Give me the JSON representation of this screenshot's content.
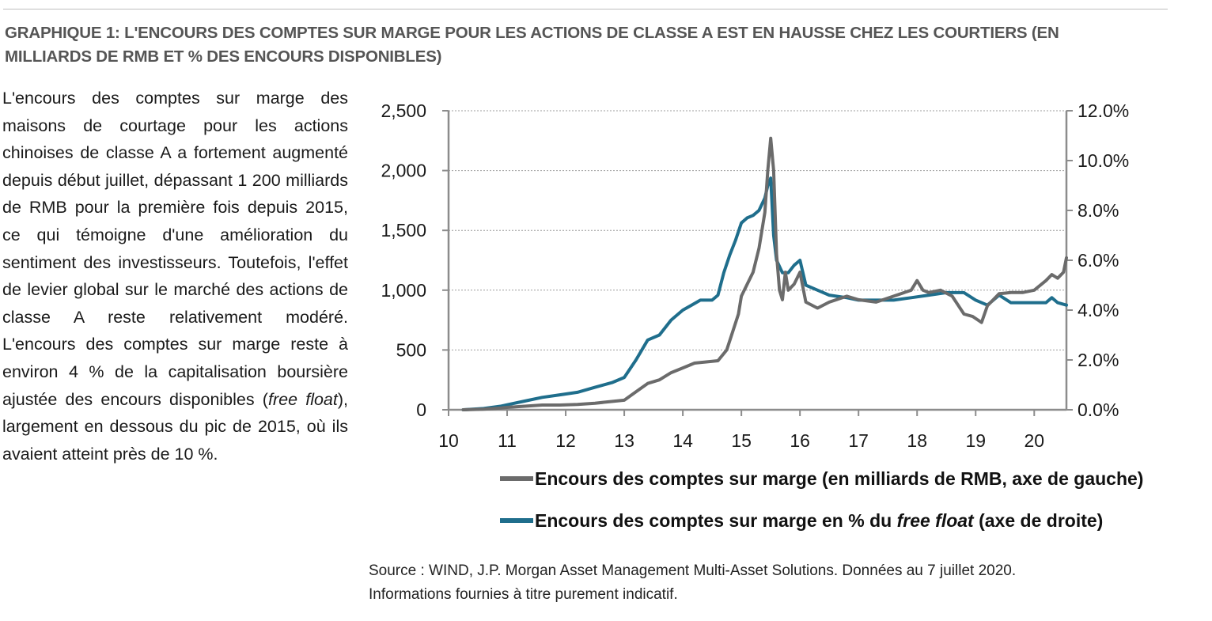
{
  "header": {
    "title": "GRAPHIQUE 1: L'ENCOURS DES COMPTES SUR MARGE POUR LES ACTIONS DE CLASSE A EST EN HAUSSE CHEZ LES COURTIERS (EN MILLIARDS DE RMB ET % DES ENCOURS DISPONIBLES)"
  },
  "body": {
    "text_before": "L'encours des comptes sur marge des maisons de courtage pour les actions chinoises de classe A a fortement augmenté depuis début juillet, dépassant 1 200 milliards de RMB pour la première fois depuis 2015, ce qui témoigne d'une amélioration du sentiment des investisseurs. Toutefois, l'effet de levier global sur le marché des actions de classe A reste relativement modéré. L'encours des comptes sur marge reste à environ 4 % de la capitalisation boursière ajustée des encours disponibles (",
    "text_italic": "free float",
    "text_after": "), largement en dessous du pic de 2015, où ils avaient atteint près de 10 %."
  },
  "legend": {
    "series1": "Encours des comptes sur marge (en milliards de RMB, axe de gauche)",
    "series2_before": "Encours des comptes sur marge en % du ",
    "series2_italic": "free float",
    "series2_after": " (axe de droite)"
  },
  "source": {
    "line1": "Source : WIND, J.P. Morgan Asset Management Multi-Asset Solutions. Données au 7 juillet 2020.",
    "line2": "Informations fournies à titre purement indicatif."
  },
  "colors": {
    "gray_series": "#6b6b6b",
    "blue_series": "#1f6e8c",
    "axis": "#8c8c8c",
    "grid": "#9e9e9e"
  },
  "chart_data": {
    "type": "line",
    "x_ticks": [
      "10",
      "11",
      "12",
      "13",
      "14",
      "15",
      "16",
      "17",
      "18",
      "19",
      "20"
    ],
    "xlim": [
      2010,
      2020.55
    ],
    "y_left_ticks": [
      "0",
      "500",
      "1,000",
      "1,500",
      "2,000",
      "2,500"
    ],
    "y_left_lim": [
      0,
      2500
    ],
    "y_right_ticks": [
      "0.0%",
      "2.0%",
      "4.0%",
      "6.0%",
      "8.0%",
      "10.0%",
      "12.0%"
    ],
    "y_right_lim": [
      0,
      12
    ],
    "grid": "horizontal dotted",
    "series": [
      {
        "axis": "left",
        "x": [
          2010.25,
          2010.6,
          2010.9,
          2011.0,
          2011.3,
          2011.6,
          2011.9,
          2012.2,
          2012.5,
          2012.8,
          2013.0,
          2013.2,
          2013.4,
          2013.6,
          2013.8,
          2014.0,
          2014.2,
          2014.4,
          2014.6,
          2014.75,
          2014.85,
          2014.95,
          2015.0,
          2015.1,
          2015.2,
          2015.3,
          2015.4,
          2015.45,
          2015.5,
          2015.55,
          2015.6,
          2015.65,
          2015.7,
          2015.75,
          2015.8,
          2015.9,
          2016.0,
          2016.1,
          2016.3,
          2016.5,
          2016.8,
          2017.0,
          2017.3,
          2017.6,
          2017.9,
          2018.0,
          2018.1,
          2018.2,
          2018.4,
          2018.6,
          2018.8,
          2018.95,
          2019.1,
          2019.2,
          2019.4,
          2019.6,
          2019.8,
          2020.0,
          2020.2,
          2020.3,
          2020.4,
          2020.5,
          2020.55
        ],
        "values": [
          0,
          5,
          15,
          20,
          30,
          40,
          40,
          45,
          55,
          70,
          80,
          150,
          220,
          250,
          310,
          350,
          390,
          400,
          410,
          500,
          650,
          800,
          950,
          1050,
          1150,
          1350,
          1650,
          2000,
          2270,
          2000,
          1300,
          1000,
          920,
          1150,
          1000,
          1050,
          1150,
          900,
          850,
          900,
          950,
          920,
          900,
          950,
          1000,
          1080,
          1000,
          980,
          1000,
          950,
          800,
          780,
          730,
          870,
          970,
          980,
          980,
          1000,
          1080,
          1130,
          1100,
          1150,
          1270
        ]
      },
      {
        "axis": "right",
        "x": [
          2010.25,
          2010.6,
          2010.9,
          2011.0,
          2011.3,
          2011.6,
          2011.9,
          2012.2,
          2012.5,
          2012.8,
          2013.0,
          2013.2,
          2013.4,
          2013.6,
          2013.8,
          2014.0,
          2014.15,
          2014.3,
          2014.5,
          2014.6,
          2014.7,
          2014.8,
          2014.9,
          2015.0,
          2015.1,
          2015.2,
          2015.3,
          2015.4,
          2015.45,
          2015.5,
          2015.55,
          2015.6,
          2015.7,
          2015.8,
          2015.9,
          2016.0,
          2016.1,
          2016.3,
          2016.5,
          2016.8,
          2017.0,
          2017.3,
          2017.6,
          2017.9,
          2018.2,
          2018.5,
          2018.8,
          2019.0,
          2019.1,
          2019.2,
          2019.4,
          2019.6,
          2019.8,
          2020.0,
          2020.2,
          2020.3,
          2020.4,
          2020.55
        ],
        "values": [
          0,
          0.05,
          0.15,
          0.2,
          0.35,
          0.5,
          0.6,
          0.7,
          0.9,
          1.1,
          1.3,
          2.0,
          2.8,
          3.0,
          3.6,
          4.0,
          4.2,
          4.4,
          4.4,
          4.6,
          5.5,
          6.2,
          6.8,
          7.5,
          7.7,
          7.8,
          8.0,
          8.5,
          9.0,
          9.3,
          7.0,
          6.0,
          5.5,
          5.5,
          5.8,
          6.0,
          5.0,
          4.8,
          4.6,
          4.5,
          4.4,
          4.4,
          4.4,
          4.5,
          4.6,
          4.7,
          4.7,
          4.4,
          4.3,
          4.2,
          4.6,
          4.3,
          4.3,
          4.3,
          4.3,
          4.5,
          4.3,
          4.2
        ]
      }
    ]
  }
}
